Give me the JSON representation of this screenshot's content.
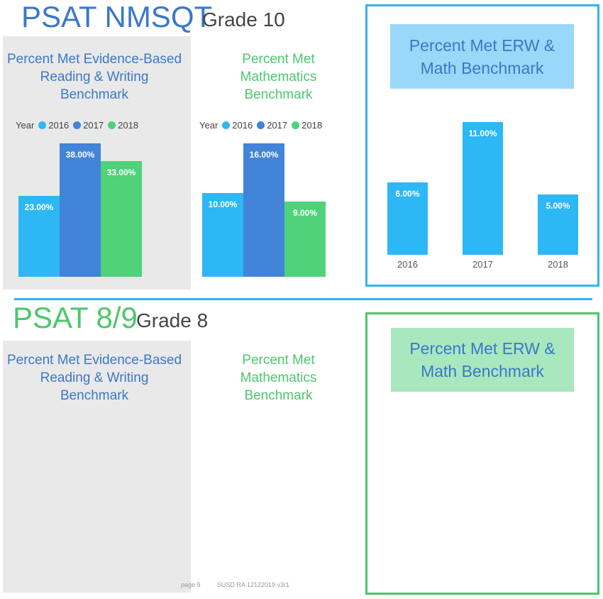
{
  "colors": {
    "c2016": "#2db7f5",
    "c2017": "#4284d8",
    "c2018": "#4fd27a",
    "blue_title": "#3a78c9",
    "green_title": "#4cc76c"
  },
  "section1": {
    "title": "PSAT NMSQT",
    "subtitle": "Grade 10",
    "combined_header": "Percent Met ERW & Math Benchmark"
  },
  "section2": {
    "title": "PSAT 8/9",
    "subtitle": "Grade 8",
    "erw_title": "Percent Met Evidence-Based Reading & Writing Benchmark",
    "math_title": "Percent Met Mathematics Benchmark",
    "combined_header": "Percent Met ERW & Math Benchmark"
  },
  "legend": {
    "label": "Year",
    "items": [
      "2016",
      "2017",
      "2018"
    ]
  },
  "footer": {
    "page": "page 9",
    "doc": "SUSD RA 12122019 v3r1"
  },
  "chart_data": [
    {
      "type": "bar",
      "title": "Percent Met Evidence-Based Reading & Writing Benchmark",
      "legend_title": "Year",
      "categories": [
        "2016",
        "2017",
        "2018"
      ],
      "values": [
        23.0,
        38.0,
        33.0
      ],
      "labels": [
        "23.00%",
        "38.00%",
        "33.00%"
      ],
      "ylim": [
        0,
        38
      ]
    },
    {
      "type": "bar",
      "title": "Percent Met Mathematics Benchmark",
      "legend_title": "Year",
      "categories": [
        "2016",
        "2017",
        "2018"
      ],
      "values": [
        10.0,
        16.0,
        9.0
      ],
      "labels": [
        "10.00%",
        "16.00%",
        "9.00%"
      ],
      "ylim": [
        0,
        16
      ]
    },
    {
      "type": "bar",
      "title": "Percent Met ERW & Math Benchmark",
      "categories": [
        "2016",
        "2017",
        "2018"
      ],
      "values": [
        6.0,
        11.0,
        5.0
      ],
      "labels": [
        "6.00%",
        "11.00%",
        "5.00%"
      ],
      "ylim": [
        0,
        11
      ]
    }
  ]
}
